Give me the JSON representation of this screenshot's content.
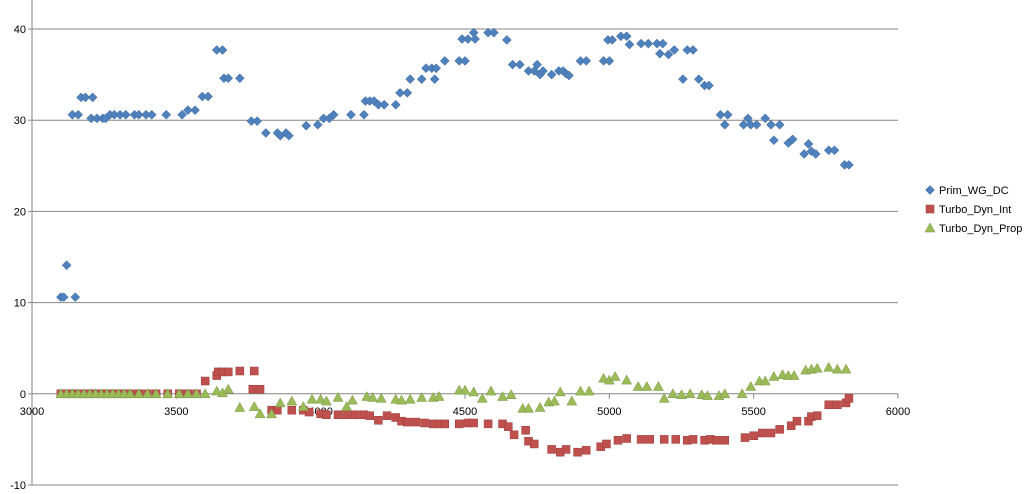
{
  "chart_data": {
    "type": "scatter",
    "xlim": [
      3000,
      6000
    ],
    "ylim": [
      -10,
      40
    ],
    "x_ticks": [
      3000,
      3500,
      4000,
      4500,
      5000,
      5500,
      6000
    ],
    "y_ticks": [
      -10,
      0,
      10,
      20,
      30,
      40
    ],
    "grid": "horizontal",
    "legend_position": "right",
    "series": [
      {
        "name": "Prim_WG_DC",
        "color": "#4F81BD",
        "marker": "diamond",
        "points": [
          [
            3100,
            10.6
          ],
          [
            3110,
            10.6
          ],
          [
            3120,
            14.1
          ],
          [
            3150,
            10.6
          ],
          [
            3140,
            30.6
          ],
          [
            3160,
            30.6
          ],
          [
            3170,
            32.5
          ],
          [
            3185,
            32.5
          ],
          [
            3205,
            30.2
          ],
          [
            3210,
            32.5
          ],
          [
            3225,
            30.2
          ],
          [
            3245,
            30.2
          ],
          [
            3255,
            30.2
          ],
          [
            3270,
            30.6
          ],
          [
            3285,
            30.6
          ],
          [
            3305,
            30.6
          ],
          [
            3325,
            30.6
          ],
          [
            3355,
            30.6
          ],
          [
            3370,
            30.6
          ],
          [
            3395,
            30.6
          ],
          [
            3415,
            30.6
          ],
          [
            3465,
            30.6
          ],
          [
            3520,
            30.6
          ],
          [
            3540,
            31.1
          ],
          [
            3565,
            31.1
          ],
          [
            3590,
            32.6
          ],
          [
            3610,
            32.6
          ],
          [
            3640,
            37.7
          ],
          [
            3660,
            37.7
          ],
          [
            3665,
            34.6
          ],
          [
            3680,
            34.6
          ],
          [
            3720,
            34.6
          ],
          [
            3760,
            29.9
          ],
          [
            3780,
            29.9
          ],
          [
            3810,
            28.6
          ],
          [
            3850,
            28.6
          ],
          [
            3860,
            28.3
          ],
          [
            3880,
            28.6
          ],
          [
            3890,
            28.3
          ],
          [
            3950,
            29.4
          ],
          [
            3990,
            29.5
          ],
          [
            4010,
            30.2
          ],
          [
            4030,
            30.2
          ],
          [
            4045,
            30.6
          ],
          [
            4105,
            30.6
          ],
          [
            4150,
            30.6
          ],
          [
            4155,
            32.1
          ],
          [
            4170,
            32.1
          ],
          [
            4185,
            32.1
          ],
          [
            4200,
            31.7
          ],
          [
            4220,
            31.7
          ],
          [
            4260,
            31.7
          ],
          [
            4275,
            33.0
          ],
          [
            4300,
            33.0
          ],
          [
            4310,
            34.5
          ],
          [
            4350,
            34.5
          ],
          [
            4365,
            35.7
          ],
          [
            4385,
            35.7
          ],
          [
            4400,
            35.7
          ],
          [
            4395,
            34.5
          ],
          [
            4430,
            36.5
          ],
          [
            4480,
            36.5
          ],
          [
            4490,
            38.9
          ],
          [
            4500,
            36.5
          ],
          [
            4510,
            38.9
          ],
          [
            4530,
            39.6
          ],
          [
            4535,
            38.9
          ],
          [
            4580,
            39.6
          ],
          [
            4600,
            39.6
          ],
          [
            4645,
            38.8
          ],
          [
            4665,
            36.1
          ],
          [
            4690,
            36.1
          ],
          [
            4720,
            35.4
          ],
          [
            4740,
            35.4
          ],
          [
            4750,
            36.1
          ],
          [
            4760,
            35.0
          ],
          [
            4770,
            35.4
          ],
          [
            4800,
            35.0
          ],
          [
            4825,
            35.4
          ],
          [
            4840,
            35.4
          ],
          [
            4850,
            35.1
          ],
          [
            4860,
            34.9
          ],
          [
            4900,
            36.5
          ],
          [
            4920,
            36.5
          ],
          [
            4980,
            36.5
          ],
          [
            5000,
            36.5
          ],
          [
            4995,
            38.8
          ],
          [
            5010,
            38.8
          ],
          [
            5040,
            39.2
          ],
          [
            5060,
            39.2
          ],
          [
            5070,
            38.3
          ],
          [
            5110,
            38.4
          ],
          [
            5135,
            38.4
          ],
          [
            5165,
            38.4
          ],
          [
            5175,
            37.3
          ],
          [
            5185,
            38.4
          ],
          [
            5205,
            37.2
          ],
          [
            5225,
            37.7
          ],
          [
            5255,
            34.5
          ],
          [
            5270,
            37.7
          ],
          [
            5290,
            37.7
          ],
          [
            5310,
            34.5
          ],
          [
            5330,
            33.8
          ],
          [
            5345,
            33.8
          ],
          [
            5385,
            30.6
          ],
          [
            5400,
            29.5
          ],
          [
            5410,
            30.6
          ],
          [
            5465,
            29.5
          ],
          [
            5480,
            30.2
          ],
          [
            5490,
            29.5
          ],
          [
            5510,
            29.5
          ],
          [
            5540,
            30.2
          ],
          [
            5560,
            29.5
          ],
          [
            5570,
            27.8
          ],
          [
            5590,
            29.5
          ],
          [
            5620,
            27.5
          ],
          [
            5635,
            27.9
          ],
          [
            5675,
            26.3
          ],
          [
            5690,
            27.4
          ],
          [
            5700,
            26.6
          ],
          [
            5715,
            26.3
          ],
          [
            5760,
            26.7
          ],
          [
            5780,
            26.7
          ],
          [
            5815,
            25.1
          ],
          [
            5830,
            25.1
          ]
        ]
      },
      {
        "name": "Turbo_Dyn_Int",
        "color": "#C0504D",
        "marker": "square",
        "points": [
          [
            3100,
            0
          ],
          [
            3120,
            0
          ],
          [
            3140,
            0
          ],
          [
            3160,
            0
          ],
          [
            3180,
            0
          ],
          [
            3200,
            0
          ],
          [
            3220,
            0
          ],
          [
            3240,
            0
          ],
          [
            3260,
            0
          ],
          [
            3280,
            0
          ],
          [
            3300,
            0
          ],
          [
            3320,
            0
          ],
          [
            3340,
            0
          ],
          [
            3370,
            0
          ],
          [
            3400,
            0
          ],
          [
            3430,
            0
          ],
          [
            3470,
            0
          ],
          [
            3510,
            0
          ],
          [
            3540,
            0
          ],
          [
            3570,
            0
          ],
          [
            3600,
            1.4
          ],
          [
            3640,
            2.0
          ],
          [
            3645,
            2.4
          ],
          [
            3660,
            2.4
          ],
          [
            3680,
            2.4
          ],
          [
            3720,
            2.5
          ],
          [
            3765,
            0.5
          ],
          [
            3770,
            2.5
          ],
          [
            3790,
            0.5
          ],
          [
            3830,
            -1.8
          ],
          [
            3850,
            -1.8
          ],
          [
            3900,
            -1.8
          ],
          [
            3940,
            -1.8
          ],
          [
            3960,
            -2.0
          ],
          [
            4000,
            -2.2
          ],
          [
            4020,
            -2.3
          ],
          [
            4060,
            -2.3
          ],
          [
            4090,
            -2.3
          ],
          [
            4120,
            -2.3
          ],
          [
            4150,
            -2.3
          ],
          [
            4170,
            -2.4
          ],
          [
            4200,
            -2.9
          ],
          [
            4230,
            -2.4
          ],
          [
            4260,
            -2.6
          ],
          [
            4280,
            -3.0
          ],
          [
            4300,
            -3.1
          ],
          [
            4330,
            -3.1
          ],
          [
            4360,
            -3.2
          ],
          [
            4390,
            -3.3
          ],
          [
            4410,
            -3.3
          ],
          [
            4430,
            -3.3
          ],
          [
            4480,
            -3.3
          ],
          [
            4510,
            -3.2
          ],
          [
            4530,
            -3.2
          ],
          [
            4580,
            -3.3
          ],
          [
            4630,
            -3.3
          ],
          [
            4650,
            -3.6
          ],
          [
            4670,
            -4.5
          ],
          [
            4710,
            -4.0
          ],
          [
            4720,
            -5.2
          ],
          [
            4740,
            -5.5
          ],
          [
            4800,
            -6.1
          ],
          [
            4830,
            -6.4
          ],
          [
            4850,
            -6.1
          ],
          [
            4890,
            -6.4
          ],
          [
            4920,
            -6.2
          ],
          [
            4970,
            -5.8
          ],
          [
            4990,
            -5.5
          ],
          [
            5030,
            -5.1
          ],
          [
            5060,
            -4.9
          ],
          [
            5110,
            -5.0
          ],
          [
            5140,
            -5.0
          ],
          [
            5190,
            -5.0
          ],
          [
            5230,
            -5.0
          ],
          [
            5270,
            -5.1
          ],
          [
            5290,
            -5.0
          ],
          [
            5330,
            -5.1
          ],
          [
            5350,
            -5.0
          ],
          [
            5370,
            -5.1
          ],
          [
            5400,
            -5.1
          ],
          [
            5470,
            -4.8
          ],
          [
            5500,
            -4.6
          ],
          [
            5530,
            -4.3
          ],
          [
            5560,
            -4.3
          ],
          [
            5590,
            -3.9
          ],
          [
            5630,
            -3.5
          ],
          [
            5650,
            -3.0
          ],
          [
            5690,
            -3.0
          ],
          [
            5700,
            -2.5
          ],
          [
            5720,
            -2.4
          ],
          [
            5760,
            -1.2
          ],
          [
            5790,
            -1.2
          ],
          [
            5820,
            -1.0
          ],
          [
            5830,
            -0.5
          ]
        ]
      },
      {
        "name": "Turbo_Dyn_Prop",
        "color": "#9BBB59",
        "marker": "triangle",
        "points": [
          [
            3100,
            0
          ],
          [
            3120,
            0
          ],
          [
            3140,
            0
          ],
          [
            3160,
            0
          ],
          [
            3180,
            0
          ],
          [
            3200,
            0
          ],
          [
            3220,
            0
          ],
          [
            3240,
            0
          ],
          [
            3260,
            0
          ],
          [
            3280,
            0
          ],
          [
            3300,
            0
          ],
          [
            3320,
            0
          ],
          [
            3340,
            0
          ],
          [
            3370,
            0
          ],
          [
            3400,
            0
          ],
          [
            3430,
            0
          ],
          [
            3470,
            0
          ],
          [
            3510,
            0
          ],
          [
            3540,
            0
          ],
          [
            3570,
            0
          ],
          [
            3600,
            0
          ],
          [
            3640,
            0.3
          ],
          [
            3660,
            0.1
          ],
          [
            3680,
            0.5
          ],
          [
            3720,
            -1.5
          ],
          [
            3770,
            -1.4
          ],
          [
            3790,
            -2.2
          ],
          [
            3830,
            -2.2
          ],
          [
            3860,
            -1.0
          ],
          [
            3900,
            -0.8
          ],
          [
            3940,
            -1.4
          ],
          [
            3970,
            -0.6
          ],
          [
            4000,
            -0.6
          ],
          [
            4020,
            -0.8
          ],
          [
            4060,
            -0.4
          ],
          [
            4090,
            -1.4
          ],
          [
            4110,
            -0.7
          ],
          [
            4160,
            -0.3
          ],
          [
            4180,
            -0.4
          ],
          [
            4210,
            -0.5
          ],
          [
            4260,
            -0.6
          ],
          [
            4280,
            -0.7
          ],
          [
            4310,
            -0.6
          ],
          [
            4350,
            -0.4
          ],
          [
            4390,
            -0.4
          ],
          [
            4410,
            -0.3
          ],
          [
            4480,
            0.4
          ],
          [
            4500,
            0.4
          ],
          [
            4530,
            0.2
          ],
          [
            4560,
            -0.5
          ],
          [
            4590,
            0.3
          ],
          [
            4630,
            -0.3
          ],
          [
            4660,
            -0.1
          ],
          [
            4700,
            -1.6
          ],
          [
            4720,
            -1.6
          ],
          [
            4760,
            -1.5
          ],
          [
            4790,
            -0.9
          ],
          [
            4810,
            -0.8
          ],
          [
            4830,
            0.2
          ],
          [
            4870,
            -0.8
          ],
          [
            4900,
            0.3
          ],
          [
            4930,
            0.3
          ],
          [
            4980,
            1.7
          ],
          [
            5000,
            1.5
          ],
          [
            5020,
            1.9
          ],
          [
            5060,
            1.5
          ],
          [
            5100,
            0.8
          ],
          [
            5130,
            0.8
          ],
          [
            5170,
            0.8
          ],
          [
            5190,
            -0.5
          ],
          [
            5220,
            0
          ],
          [
            5250,
            -0.1
          ],
          [
            5280,
            0
          ],
          [
            5320,
            -0.1
          ],
          [
            5340,
            -0.2
          ],
          [
            5380,
            -0.2
          ],
          [
            5400,
            0
          ],
          [
            5460,
            0
          ],
          [
            5490,
            0.8
          ],
          [
            5520,
            1.4
          ],
          [
            5540,
            1.4
          ],
          [
            5570,
            1.9
          ],
          [
            5600,
            2.1
          ],
          [
            5620,
            2.0
          ],
          [
            5640,
            2.0
          ],
          [
            5680,
            2.6
          ],
          [
            5700,
            2.7
          ],
          [
            5720,
            2.8
          ],
          [
            5760,
            2.9
          ],
          [
            5790,
            2.7
          ],
          [
            5820,
            2.7
          ]
        ]
      }
    ]
  }
}
